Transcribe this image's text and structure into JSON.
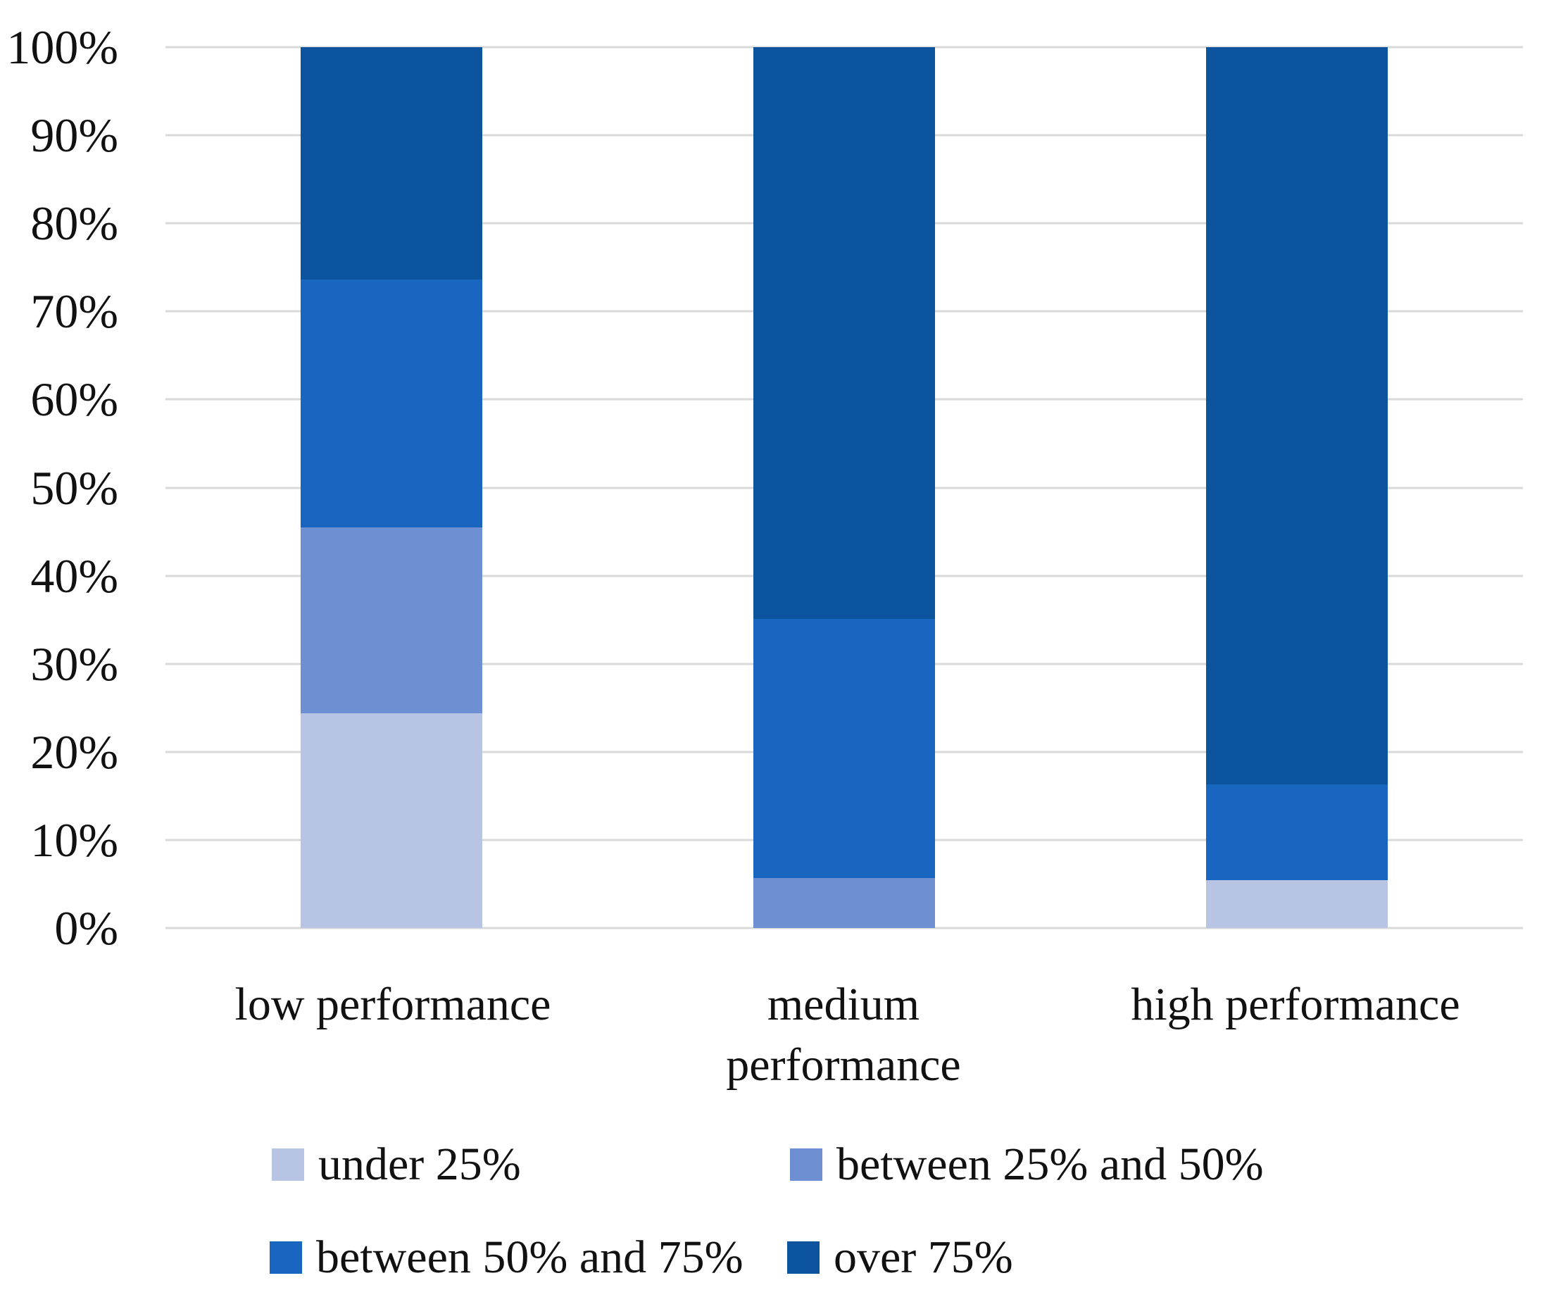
{
  "chart_data": {
    "type": "bar",
    "stacked": true,
    "stacking": "percent",
    "title": "",
    "xlabel": "",
    "ylabel": "",
    "ylim": [
      0,
      100
    ],
    "grid": true,
    "gridline_color": "#d9d9d9",
    "background_color": "#ffffff",
    "text_color": "#111111",
    "legend_position": "bottom",
    "categories": [
      "low performance",
      "medium\nperformance",
      "high performance"
    ],
    "y_ticks": [
      "100%",
      "90%",
      "80%",
      "70%",
      "60%",
      "50%",
      "40%",
      "30%",
      "20%",
      "10%",
      "0%"
    ],
    "series": [
      {
        "name": "under 25%",
        "color": "#b7c4e3",
        "values": [
          24.4,
          0,
          5.4
        ]
      },
      {
        "name": "between 25% and 50%",
        "color": "#6e8fd2",
        "values": [
          21.1,
          5.7,
          0
        ]
      },
      {
        "name": "between 50% and 75%",
        "color": "#1866bf",
        "values": [
          28.1,
          29.4,
          10.9
        ]
      },
      {
        "name": "over 75%",
        "color": "#0d549e",
        "values": [
          26.4,
          64.9,
          83.7
        ]
      }
    ]
  }
}
